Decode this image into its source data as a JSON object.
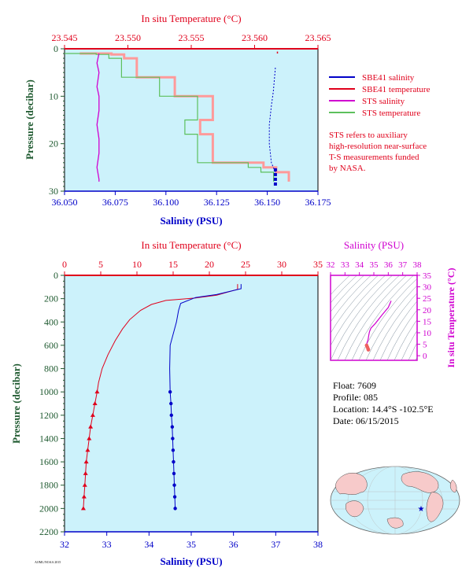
{
  "colors": {
    "temperature": "#e0001b",
    "salinity": "#0000c8",
    "sts_salinity": "#d000d0",
    "sts_temperature": "#5cc05c",
    "sts_temp_fill": "#ff9a9a",
    "panel_bg": "#ccf2fb",
    "axis_green": "#1f5a30"
  },
  "top_chart": {
    "title_top": "In situ Temperature (°C)",
    "xlabel": "Salinity (PSU)",
    "ylabel": "Pressure (decibar)",
    "temp_ticks": [
      "23.545",
      "23.550",
      "23.555",
      "23.560",
      "23.565"
    ],
    "sal_ticks": [
      "36.050",
      "36.075",
      "36.100",
      "36.125",
      "36.150",
      "36.175"
    ],
    "pres_ticks": [
      "0",
      "10",
      "20",
      "30"
    ],
    "legend": [
      {
        "label": "SBE41 salinity",
        "color": "#0000c8"
      },
      {
        "label": "SBE41 temperature",
        "color": "#e0001b"
      },
      {
        "label": "STS salinity",
        "color": "#d000d0"
      },
      {
        "label": "STS temperature",
        "color": "#5cc05c"
      }
    ],
    "note_lines": [
      "STS refers to auxiliary",
      "high-resolution near-surface",
      "T-S measurements funded",
      "by NASA."
    ]
  },
  "main_chart": {
    "title_top": "In situ Temperature (°C)",
    "xlabel": "Salinity (PSU)",
    "ylabel": "Pressure (decibar)",
    "temp_ticks": [
      "0",
      "5",
      "10",
      "15",
      "20",
      "25",
      "30",
      "35"
    ],
    "sal_ticks": [
      "32",
      "33",
      "34",
      "35",
      "36",
      "37",
      "38"
    ],
    "pres_ticks": [
      "0",
      "200",
      "400",
      "600",
      "800",
      "1000",
      "1200",
      "1400",
      "1600",
      "1800",
      "2000",
      "2200"
    ]
  },
  "ts_chart": {
    "title_top": "Salinity (PSU)",
    "ylabel": "In situ Temperature (°C)",
    "sal_ticks": [
      "32",
      "33",
      "34",
      "35",
      "36",
      "37",
      "38"
    ],
    "temp_ticks": [
      "0",
      "5",
      "10",
      "15",
      "20",
      "25",
      "30",
      "35"
    ]
  },
  "info": {
    "float": "Float:  7609",
    "profile": "Profile:  085",
    "location": "Location:  14.4°S  -102.5°E",
    "date": "Date:  06/15/2015"
  },
  "chart_data": [
    {
      "type": "line",
      "title": "",
      "xlabel": "Salinity (PSU)",
      "x2label": "In situ Temperature (°C)",
      "ylabel": "Pressure (decibar)",
      "xlim": [
        36.05,
        36.175
      ],
      "x2lim": [
        23.545,
        23.565
      ],
      "ylim": [
        30,
        0
      ],
      "series": [
        {
          "name": "SBE41 salinity",
          "axis": "salinity",
          "points": [
            [
              36.154,
              25.5
            ],
            [
              36.154,
              26.5
            ],
            [
              36.154,
              27.5
            ],
            [
              36.154,
              28.5
            ]
          ]
        },
        {
          "name": "SBE41 temperature",
          "axis": "temperature",
          "points": [
            [
              23.5618,
              0.6
            ],
            [
              23.5618,
              1.0
            ]
          ]
        },
        {
          "name": "STS salinity",
          "axis": "salinity",
          "points": [
            [
              36.067,
              1
            ],
            [
              36.066,
              3
            ],
            [
              36.067,
              5
            ],
            [
              36.066,
              8
            ],
            [
              36.067,
              10
            ],
            [
              36.067,
              13
            ],
            [
              36.066,
              16
            ],
            [
              36.067,
              19
            ],
            [
              36.067,
              22
            ],
            [
              36.066,
              25
            ],
            [
              36.067,
              27.5
            ],
            [
              36.067,
              28
            ]
          ]
        },
        {
          "name": "STS temperature",
          "axis": "temperature",
          "points": [
            [
              23.545,
              1
            ],
            [
              23.5475,
              1.2
            ],
            [
              23.5485,
              2
            ],
            [
              23.5495,
              4
            ],
            [
              23.5495,
              6
            ],
            [
              23.5525,
              7
            ],
            [
              23.5525,
              10
            ],
            [
              23.5555,
              12
            ],
            [
              23.5555,
              15
            ],
            [
              23.5545,
              18
            ],
            [
              23.5555,
              21
            ],
            [
              23.5555,
              24
            ],
            [
              23.5595,
              25
            ],
            [
              23.5605,
              26
            ],
            [
              23.5615,
              27
            ],
            [
              23.5615,
              28
            ]
          ]
        },
        {
          "name": "STS salinity (right)",
          "axis": "salinity",
          "points": [
            [
              36.154,
              4
            ],
            [
              36.153,
              9
            ],
            [
              36.152,
              12
            ],
            [
              36.151,
              16
            ],
            [
              36.151,
              20
            ],
            [
              36.152,
              24
            ],
            [
              36.154,
              26
            ]
          ]
        }
      ]
    },
    {
      "type": "line",
      "title": "",
      "xlabel": "Salinity (PSU)",
      "x2label": "In situ Temperature (°C)",
      "ylabel": "Pressure (decibar)",
      "xlim": [
        32,
        38
      ],
      "x2lim": [
        0,
        35
      ],
      "ylim": [
        2200,
        0
      ],
      "series": [
        {
          "name": "SBE41 temperature",
          "axis": "temperature",
          "points": [
            [
              23.9,
              75
            ],
            [
              23.9,
              120
            ],
            [
              21.0,
              170
            ],
            [
              18.0,
              195
            ],
            [
              14.0,
              215
            ],
            [
              12.0,
              250
            ],
            [
              10.5,
              300
            ],
            [
              9.0,
              380
            ],
            [
              8.0,
              460
            ],
            [
              7.0,
              560
            ],
            [
              6.0,
              680
            ],
            [
              5.2,
              800
            ],
            [
              4.7,
              920
            ],
            [
              4.5,
              1000
            ],
            [
              4.2,
              1100
            ],
            [
              3.9,
              1200
            ],
            [
              3.6,
              1300
            ],
            [
              3.4,
              1400
            ],
            [
              3.2,
              1500
            ],
            [
              3.0,
              1600
            ],
            [
              2.9,
              1700
            ],
            [
              2.8,
              1800
            ],
            [
              2.7,
              1900
            ],
            [
              2.6,
              2000
            ]
          ]
        },
        {
          "name": "SBE41 salinity",
          "axis": "salinity",
          "points": [
            [
              36.18,
              75
            ],
            [
              36.18,
              115
            ],
            [
              35.6,
              165
            ],
            [
              35.1,
              190
            ],
            [
              34.75,
              240
            ],
            [
              34.7,
              300
            ],
            [
              34.65,
              400
            ],
            [
              34.5,
              600
            ],
            [
              34.49,
              800
            ],
            [
              34.5,
              1000
            ],
            [
              34.52,
              1100
            ],
            [
              34.53,
              1200
            ],
            [
              34.55,
              1300
            ],
            [
              34.56,
              1400
            ],
            [
              34.57,
              1500
            ],
            [
              34.58,
              1600
            ],
            [
              34.59,
              1700
            ],
            [
              34.6,
              1800
            ],
            [
              34.61,
              1900
            ],
            [
              34.62,
              2000
            ]
          ]
        }
      ]
    },
    {
      "type": "scatter",
      "title": "",
      "xlabel": "Salinity (PSU)",
      "ylabel": "In situ Temperature (°C)",
      "xlim": [
        32,
        38
      ],
      "ylim": [
        -2,
        35
      ],
      "series": [
        {
          "name": "T-S profile",
          "points": [
            [
              36.2,
              23.9
            ],
            [
              36.0,
              21.0
            ],
            [
              35.6,
              18.0
            ],
            [
              35.1,
              14.0
            ],
            [
              34.8,
              12.0
            ],
            [
              34.7,
              10.5
            ],
            [
              34.65,
              9.0
            ],
            [
              34.6,
              7.0
            ],
            [
              34.52,
              5.5
            ],
            [
              34.5,
              4.5
            ],
            [
              34.55,
              3.8
            ],
            [
              34.6,
              3.0
            ],
            [
              34.62,
              2.6
            ]
          ]
        }
      ]
    }
  ],
  "footer_tag": "AOML/NOAA 2015"
}
